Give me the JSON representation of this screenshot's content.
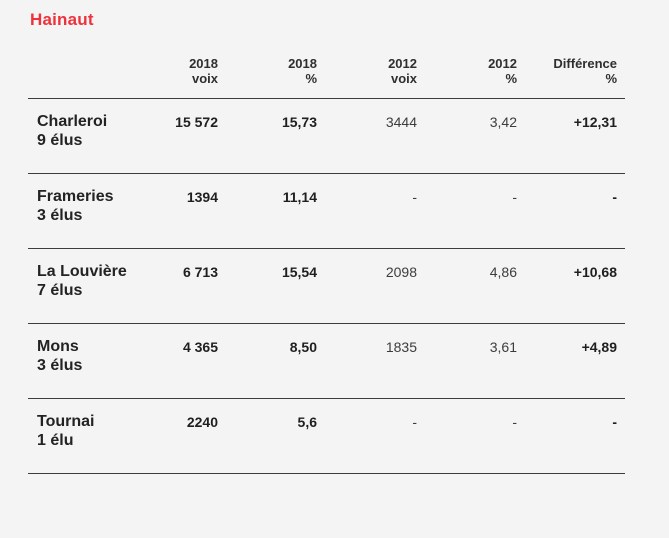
{
  "colors": {
    "title_red": "#ed323c",
    "background": "#f5f4f5",
    "rule_line": "#3d3d3d",
    "text_dark": "#232323"
  },
  "chart_data": {
    "type": "table",
    "title": "Hainaut",
    "columns": [
      {
        "line1": "2018",
        "line2": "voix"
      },
      {
        "line1": "2018",
        "line2": "%"
      },
      {
        "line1": "2012",
        "line2": "voix"
      },
      {
        "line1": "2012",
        "line2": "%"
      },
      {
        "line1": "Différence",
        "line2": "%"
      }
    ],
    "rows": [
      {
        "name": "Charleroi",
        "seats": "9 élus",
        "v2018": "15 572",
        "p2018": "15,73",
        "v2012": "3444",
        "p2012": "3,42",
        "diff": "+12,31"
      },
      {
        "name": "Frameries",
        "seats": "3 élus",
        "v2018": "1394",
        "p2018": "11,14",
        "v2012": "-",
        "p2012": "-",
        "diff": "-"
      },
      {
        "name": "La Louvière",
        "seats": "7 élus",
        "v2018": "6 713",
        "p2018": "15,54",
        "v2012": "2098",
        "p2012": "4,86",
        "diff": "+10,68"
      },
      {
        "name": "Mons",
        "seats": "3 élus",
        "v2018": "4 365",
        "p2018": "8,50",
        "v2012": "1835",
        "p2012": "3,61",
        "diff": "+4,89"
      },
      {
        "name": "Tournai",
        "seats": "1 élu",
        "v2018": "2240",
        "p2018": "5,6",
        "v2012": "-",
        "p2012": "-",
        "diff": "-"
      }
    ]
  }
}
